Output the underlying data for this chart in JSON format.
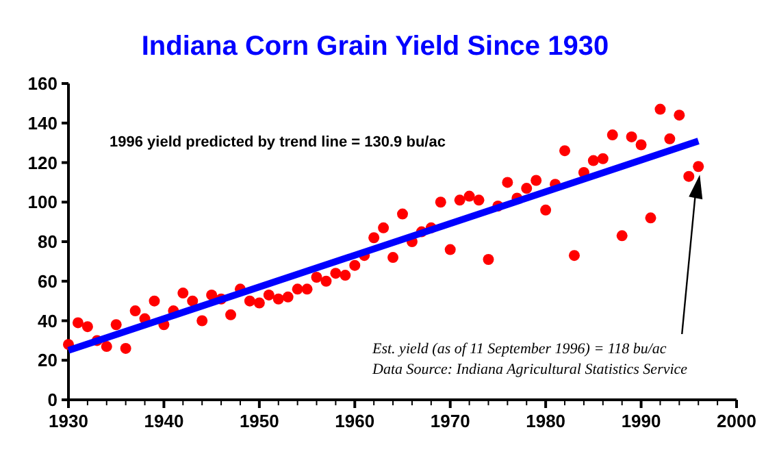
{
  "chart_data": {
    "type": "scatter",
    "title": "Indiana Corn Grain Yield Since 1930",
    "xlim": [
      1930,
      2000
    ],
    "xticks": [
      1930,
      {
        "value": 1932,
        "label": null
      },
      {
        "value": 1934,
        "label": null
      },
      {
        "value": 1936,
        "label": null
      },
      {
        "value": 1938,
        "label": null
      },
      1940,
      {
        "value": 1942,
        "label": null
      },
      {
        "value": 1944,
        "label": null
      },
      {
        "value": 1946,
        "label": null
      },
      {
        "value": 1948,
        "label": null
      },
      1950,
      {
        "value": 1952,
        "label": null
      },
      {
        "value": 1954,
        "label": null
      },
      {
        "value": 1956,
        "label": null
      },
      {
        "value": 1958,
        "label": null
      },
      1960,
      {
        "value": 1962,
        "label": null
      },
      {
        "value": 1964,
        "label": null
      },
      {
        "value": 1966,
        "label": null
      },
      {
        "value": 1968,
        "label": null
      },
      1970,
      {
        "value": 1972,
        "label": null
      },
      {
        "value": 1974,
        "label": null
      },
      {
        "value": 1976,
        "label": null
      },
      {
        "value": 1978,
        "label": null
      },
      1980,
      {
        "value": 1982,
        "label": null
      },
      {
        "value": 1984,
        "label": null
      },
      {
        "value": 1986,
        "label": null
      },
      {
        "value": 1988,
        "label": null
      },
      1990,
      {
        "value": 1992,
        "label": null
      },
      {
        "value": 1994,
        "label": null
      },
      {
        "value": 1996,
        "label": null
      },
      {
        "value": 1998,
        "label": null
      },
      2000
    ],
    "ylim": [
      0,
      160
    ],
    "yticks": [
      0,
      20,
      40,
      60,
      80,
      100,
      120,
      140,
      160
    ],
    "grid": false,
    "series": [
      {
        "color": "#ff0000",
        "marker": "circle",
        "x": [
          1930,
          1931,
          1932,
          1933,
          1934,
          1935,
          1936,
          1937,
          1938,
          1939,
          1940,
          1941,
          1942,
          1943,
          1944,
          1945,
          1946,
          1947,
          1948,
          1949,
          1950,
          1951,
          1952,
          1953,
          1954,
          1955,
          1956,
          1957,
          1958,
          1959,
          1960,
          1961,
          1962,
          1963,
          1964,
          1965,
          1966,
          1967,
          1968,
          1969,
          1970,
          1971,
          1972,
          1973,
          1974,
          1975,
          1976,
          1977,
          1978,
          1979,
          1980,
          1981,
          1982,
          1983,
          1984,
          1985,
          1986,
          1987,
          1988,
          1989,
          1990,
          1991,
          1992,
          1993,
          1994,
          1995,
          1996
        ],
        "values": [
          28,
          39,
          37,
          30,
          27,
          38,
          26,
          45,
          41,
          50,
          38,
          45,
          54,
          50,
          40,
          53,
          51,
          43,
          56,
          50,
          49,
          53,
          51,
          52,
          56,
          56,
          62,
          60,
          64,
          63,
          68,
          73,
          82,
          87,
          72,
          94,
          80,
          85,
          87,
          100,
          76,
          101,
          103,
          101,
          71,
          98,
          110,
          102,
          107,
          111,
          96,
          109,
          126,
          73,
          115,
          121,
          122,
          134,
          83,
          133,
          129,
          92,
          147,
          132,
          144,
          113,
          118
        ]
      },
      {
        "type": "line",
        "color": "#0000ff",
        "marker": "none",
        "line_style": "solid",
        "x": [
          1930,
          1996
        ],
        "values": [
          25,
          130.9
        ]
      }
    ],
    "annotations": [
      "1996 yield predicted by trend line = 130.9 bu/ac",
      "Est. yield (as of 11 September 1996) = 118 bu/ac",
      "Data Source: Indiana Agricultural Statistics Service"
    ]
  }
}
